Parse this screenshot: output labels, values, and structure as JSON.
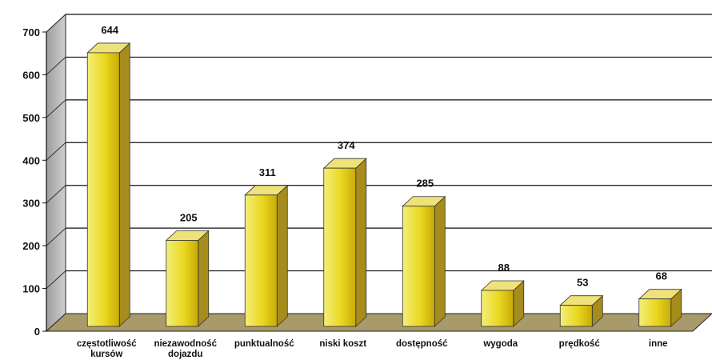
{
  "chart_data": {
    "type": "bar",
    "categories": [
      [
        "częstotliwość",
        "kursów"
      ],
      [
        "niezawodność",
        "dojazdu"
      ],
      [
        "punktualność"
      ],
      [
        "niski koszt"
      ],
      [
        "dostępność"
      ],
      [
        "wygoda"
      ],
      [
        "prędkość"
      ],
      [
        "inne"
      ]
    ],
    "values": [
      644,
      205,
      311,
      374,
      285,
      88,
      53,
      68
    ],
    "value_labels": [
      "644",
      "205",
      "311",
      "374",
      "285",
      "88",
      "53",
      "68"
    ],
    "yticks": [
      "0",
      "100",
      "200",
      "300",
      "400",
      "500",
      "600",
      "700"
    ],
    "ylim": [
      0,
      700
    ],
    "grid": true,
    "legend": "none",
    "colors": {
      "bar_front_top": "#f4ee7a",
      "bar_front_mid": "#e9d71f",
      "bar_front_bottom": "#c8aa08",
      "bar_side": "#a58c1c",
      "bar_top": "#efe27a",
      "wall": "#c6c6c6",
      "wall_side": "#a9a9a9",
      "floor": "#a89a6a",
      "grid": "#111111"
    }
  }
}
